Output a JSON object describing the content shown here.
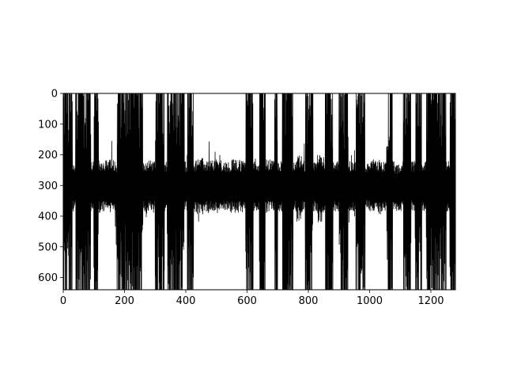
{
  "chart_data": {
    "type": "line",
    "title": "",
    "xlabel": "",
    "ylabel": "",
    "xlim": [
      0,
      1280
    ],
    "ylim": [
      640,
      0
    ],
    "y_inverted": true,
    "grid": false,
    "legend": "none",
    "line_color": "#000000",
    "xticks": [
      0,
      200,
      400,
      600,
      800,
      1000,
      1200
    ],
    "yticks": [
      0,
      100,
      200,
      300,
      400,
      500,
      600
    ],
    "xtick_labels": [
      "0",
      "200",
      "400",
      "600",
      "800",
      "1000",
      "1200"
    ],
    "ytick_labels": [
      "0",
      "100",
      "200",
      "300",
      "400",
      "500",
      "600"
    ],
    "band_center": 305,
    "quiet_band": [
      220,
      385
    ],
    "quiet_segments": [
      {
        "x": [
          90,
          170
        ],
        "band": [
          215,
          390
        ]
      },
      {
        "x": [
          265,
          300
        ],
        "band": [
          215,
          390
        ]
      },
      {
        "x": [
          430,
          460
        ],
        "band": [
          210,
          395
        ]
      },
      {
        "x": [
          470,
          520
        ],
        "band": [
          215,
          390
        ]
      },
      {
        "x": [
          545,
          600
        ],
        "band": [
          215,
          390
        ]
      },
      {
        "x": [
          660,
          690
        ],
        "band": [
          215,
          390
        ]
      },
      {
        "x": [
          760,
          780
        ],
        "band": [
          200,
          420
        ]
      },
      {
        "x": [
          830,
          850
        ],
        "band": [
          200,
          420
        ]
      },
      {
        "x": [
          1010,
          1040
        ],
        "band": [
          215,
          395
        ]
      },
      {
        "x": [
          1080,
          1105
        ],
        "band": [
          230,
          385
        ]
      }
    ],
    "full_swing_bursts": [
      [
        0,
        30
      ],
      [
        40,
        90
      ],
      [
        100,
        115
      ],
      [
        175,
        260
      ],
      [
        300,
        330
      ],
      [
        340,
        395
      ],
      [
        405,
        425
      ],
      [
        595,
        620
      ],
      [
        640,
        660
      ],
      [
        690,
        700
      ],
      [
        715,
        750
      ],
      [
        790,
        815
      ],
      [
        855,
        880
      ],
      [
        900,
        930
      ],
      [
        955,
        985
      ],
      [
        1055,
        1075
      ],
      [
        1110,
        1135
      ],
      [
        1150,
        1170
      ],
      [
        1185,
        1250
      ],
      [
        1262,
        1280
      ]
    ]
  }
}
